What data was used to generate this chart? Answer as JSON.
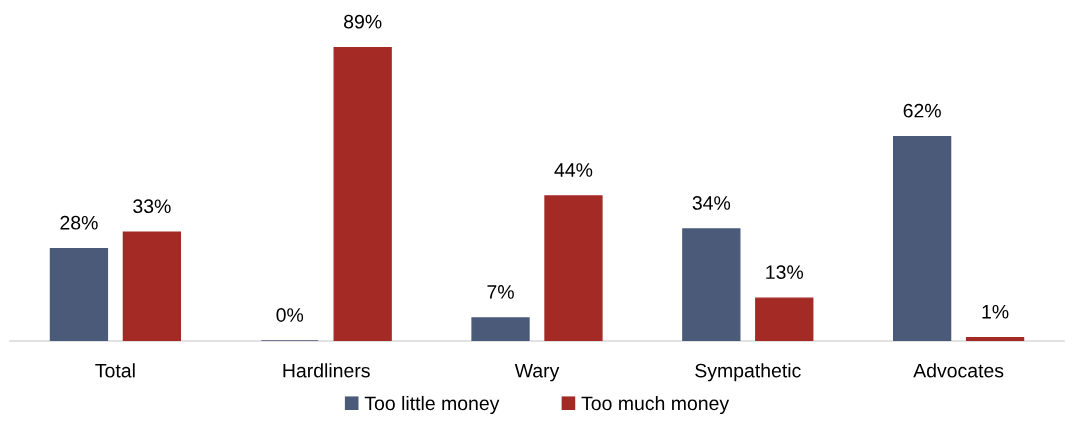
{
  "chart_data": {
    "type": "bar",
    "categories": [
      "Total",
      "Hardliners",
      "Wary",
      "Sympathetic",
      "Advocates"
    ],
    "series": [
      {
        "name": "Too little money",
        "color": "#4a5a78",
        "values": [
          28,
          0,
          7,
          34,
          62
        ],
        "value_labels": [
          "28%",
          "0%",
          "7%",
          "34%",
          "62%"
        ]
      },
      {
        "name": "Too much money",
        "color": "#a42a26",
        "values": [
          33,
          89,
          44,
          13,
          1
        ],
        "value_labels": [
          "33%",
          "89%",
          "44%",
          "13%",
          "1%"
        ]
      }
    ],
    "legend": "bottom"
  }
}
